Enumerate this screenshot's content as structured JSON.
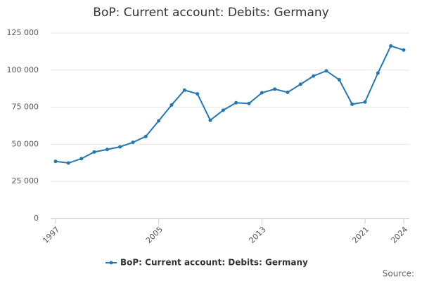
{
  "chart_data": {
    "type": "line",
    "title": "BoP: Current account: Debits: Germany",
    "x": [
      1997,
      1998,
      1999,
      2000,
      2001,
      2002,
      2003,
      2004,
      2005,
      2006,
      2007,
      2008,
      2009,
      2010,
      2011,
      2012,
      2013,
      2014,
      2015,
      2016,
      2017,
      2018,
      2019,
      2020,
      2021,
      2022,
      2023,
      2024
    ],
    "series": [
      {
        "name": "BoP: Current account: Debits: Germany",
        "color": "#2277b5",
        "values": [
          38500,
          37400,
          40300,
          44800,
          46500,
          48300,
          51300,
          55300,
          65800,
          76500,
          86500,
          84000,
          66200,
          73000,
          78000,
          77500,
          84700,
          87200,
          85000,
          90500,
          96000,
          99500,
          93500,
          77000,
          78500,
          98000,
          116300,
          113500
        ]
      }
    ],
    "xlim": [
      1997,
      2024
    ],
    "xticks": [
      1997,
      2005,
      2013,
      2021,
      2024
    ],
    "ylim": [
      0,
      125000
    ],
    "yticks": [
      0,
      {
        "value": 25000,
        "label": "25 000"
      },
      {
        "value": 50000,
        "label": "50 000"
      },
      {
        "value": 75000,
        "label": "75 000"
      },
      {
        "value": 100000,
        "label": "100 000"
      },
      {
        "value": 125000,
        "label": "125 000"
      }
    ],
    "grid": true,
    "source": "Source:"
  }
}
